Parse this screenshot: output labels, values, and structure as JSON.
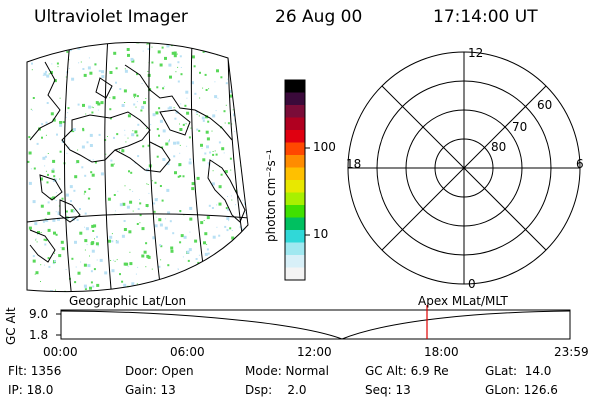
{
  "header": {
    "title": "Ultraviolet Imager",
    "date": "26 Aug 00",
    "time": "17:14:00 UT"
  },
  "colorbar": {
    "unit_label": "photon cm⁻²s⁻¹",
    "tick_labels": [
      "100",
      "10"
    ],
    "colors": [
      "#000000",
      "#3a0a3a",
      "#7a0c38",
      "#b00020",
      "#e00010",
      "#ff4800",
      "#ff8c00",
      "#ffc000",
      "#e8e800",
      "#a8f000",
      "#40e000",
      "#00c060",
      "#30d8d8",
      "#a0e8f0",
      "#d8f0f8",
      "#f4f4f4"
    ]
  },
  "polar_plot": {
    "labels_mlt": {
      "top": "12",
      "left": "18",
      "right": "6",
      "bottom": "0"
    },
    "labels_lat": [
      "60",
      "70",
      "80"
    ]
  },
  "altitude_track": {
    "axis_label": "GC Alt",
    "y_ticks": [
      "9.0",
      "1.8"
    ],
    "left_title": "Geographic Lat/Lon",
    "right_title": "Apex MLat/MLT",
    "x_ticks": [
      "00:00",
      "06:00",
      "12:00",
      "18:00",
      "23:59"
    ]
  },
  "info": {
    "flt": "Flt: 1356",
    "ip": "IP: 18.0",
    "door": "Door: Open",
    "gain": "Gain: 13",
    "mode": "Mode: Normal",
    "dsp": "Dsp:    2.0",
    "gc_alt": "GC Alt: 6.9 Re",
    "seq": "Seq: 13",
    "glat": "GLat:  14.0",
    "glon": "GLon: 126.6"
  },
  "colors": {
    "marker": "#e00000",
    "speckle": "#58d858",
    "speckle_light": "#b8e0f4"
  }
}
